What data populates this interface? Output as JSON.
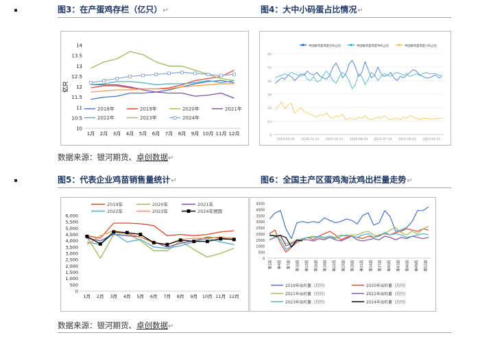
{
  "titles": {
    "fig3": "图3：在产蛋鸡存栏（亿只）",
    "fig4": "图4：大中小码蛋占比情况",
    "fig5": "图5：代表企业鸡苗销售量统计",
    "fig6": "图6：全国主产区蛋鸡淘汰鸡出栏量走势"
  },
  "return_mark": "↵",
  "source": {
    "prefix": "数据来源：银河期货、",
    "link": "卓创数据"
  },
  "colors": {
    "c2018": "#4472c4",
    "c2019": "#e0442b",
    "c2020": "#9aba59",
    "c2021": "#7f4fa0",
    "c2022": "#4bacc6",
    "c2023": "#f7963c",
    "c2024": "#8da8d8",
    "blue": "#2f6fcf",
    "teal": "#3bb0c0",
    "gold": "#f3c24f",
    "black": "#000000"
  },
  "chart_data": [
    {
      "id": "fig3",
      "type": "line",
      "title": "在产蛋鸡存栏（亿只）",
      "ylabel": "亿只",
      "ylim": [
        10,
        14
      ],
      "yticks": [
        "10",
        "10.5",
        "11",
        "11.5",
        "12",
        "12.5",
        "13",
        "13.5",
        "14"
      ],
      "categories": [
        "1月",
        "2月",
        "3月",
        "4月",
        "5月",
        "6月",
        "7月",
        "8月",
        "9月",
        "10月",
        "11月",
        "12月"
      ],
      "series": [
        {
          "name": "2018年",
          "color": "c2018",
          "values": [
            11.4,
            11.5,
            11.55,
            11.7,
            11.7,
            11.75,
            11.85,
            12.0,
            12.15,
            12.25,
            12.3,
            12.2
          ]
        },
        {
          "name": "2019年",
          "color": "c2019",
          "values": [
            11.95,
            12.05,
            12.05,
            11.95,
            11.9,
            11.9,
            11.95,
            12.1,
            12.3,
            12.4,
            12.5,
            12.8
          ]
        },
        {
          "name": "2020年",
          "color": "c2020",
          "values": [
            12.9,
            13.2,
            13.35,
            13.7,
            13.55,
            13.2,
            13.0,
            13.0,
            12.8,
            12.6,
            12.4,
            12.3
          ]
        },
        {
          "name": "2021年",
          "color": "c2021",
          "values": [
            12.1,
            12.1,
            12.1,
            12.0,
            11.85,
            11.75,
            11.7,
            11.7,
            11.55,
            11.6,
            11.7,
            11.45
          ]
        },
        {
          "name": "2022年",
          "color": "c2022",
          "values": [
            12.1,
            12.15,
            12.25,
            12.25,
            12.2,
            12.1,
            12.15,
            12.15,
            12.2,
            12.3,
            12.2,
            12.3
          ]
        },
        {
          "name": "2023年",
          "color": "c2023",
          "values": [
            11.75,
            11.8,
            11.85,
            11.85,
            11.9,
            11.9,
            11.9,
            12.0,
            12.05,
            12.1,
            12.15,
            12.15
          ]
        },
        {
          "name": "2024年",
          "color": "c2024",
          "values": [
            12.2,
            12.3,
            12.4,
            12.5,
            12.55,
            12.6,
            12.65,
            12.7,
            12.65,
            12.6,
            12.55,
            12.6
          ],
          "marker": "square"
        }
      ]
    },
    {
      "id": "fig4",
      "type": "line",
      "title": "大中小码蛋占比情况",
      "ylim": [
        0,
        60
      ],
      "yticks": [
        "0",
        "10",
        "20",
        "30",
        "40",
        "50",
        "60"
      ],
      "xticks": [
        "2018-05-05",
        "2018-11-23",
        "2019-10-11",
        "2020-08-28",
        "2021-07-16",
        "2022-06-03",
        "2023-04-21"
      ],
      "legend": [
        "中国鲜鸡蛋周度大码占比",
        "中国鲜鸡蛋周度中码占比",
        "中国鲜鸡蛋周度小码占比"
      ],
      "series": [
        {
          "name": "中国鲜鸡蛋周度大码占比",
          "color": "blue",
          "values": [
            38,
            40,
            42,
            41,
            44,
            43,
            40,
            42,
            45,
            44,
            47,
            45,
            44,
            46,
            43,
            42,
            41,
            44,
            50,
            53,
            48,
            42,
            45,
            52,
            55,
            50,
            43,
            46,
            54,
            48,
            42,
            44,
            50,
            45,
            43,
            44,
            46,
            42,
            40,
            43,
            42,
            44,
            46,
            48,
            47,
            44,
            43,
            42,
            42,
            43,
            44,
            42,
            43
          ]
        },
        {
          "name": "中国鲜鸡蛋周度中码占比",
          "color": "teal",
          "values": [
            42,
            43,
            44,
            45,
            44,
            46,
            45,
            44,
            43,
            45,
            41,
            40,
            43,
            39,
            40,
            44,
            47,
            44,
            40,
            38,
            43,
            46,
            44,
            40,
            34,
            37,
            45,
            43,
            37,
            41,
            46,
            44,
            40,
            43,
            45,
            44,
            43,
            45,
            46,
            45,
            44,
            45,
            43,
            44,
            45,
            44,
            45,
            46,
            45,
            45,
            45,
            44,
            44
          ]
        },
        {
          "name": "中国鲜鸡蛋周度小码占比",
          "color": "gold",
          "values": [
            18,
            21,
            24,
            19,
            22,
            23,
            16,
            18,
            20,
            17,
            16,
            15,
            14,
            13,
            15,
            14,
            16,
            13,
            12,
            14,
            13,
            15,
            11,
            12,
            12,
            11,
            13,
            12,
            14,
            12,
            11,
            12,
            13,
            12,
            14,
            12,
            11,
            12,
            12,
            11,
            13,
            12,
            14,
            13,
            12,
            11,
            12,
            12,
            12,
            11,
            12,
            12,
            12
          ]
        }
      ]
    },
    {
      "id": "fig5",
      "type": "line",
      "title": "代表企业鸡苗销售量统计",
      "ylim": [
        0,
        6000
      ],
      "yticks": [
        "0",
        "500",
        "1,000",
        "1,500",
        "2,000",
        "2,500",
        "3,000",
        "3,500",
        "4,000",
        "4,500",
        "5,000",
        "5,500",
        "6,000"
      ],
      "categories": [
        "1月",
        "2月",
        "3月",
        "4月",
        "5月",
        "6月",
        "7月",
        "8月",
        "9月",
        "10月",
        "11月",
        "12月"
      ],
      "legend": [
        "2019年",
        "2020年",
        "2021年",
        "2022年",
        "2023年",
        "2024年预期"
      ],
      "series": [
        {
          "name": "2019年",
          "color": "c2019",
          "values": [
            4400,
            4200,
            5400,
            5400,
            5350,
            5200,
            4400,
            4500,
            4400,
            4500,
            4700,
            4800
          ]
        },
        {
          "name": "2020年",
          "color": "c2020",
          "values": [
            4300,
            2600,
            4500,
            4600,
            4000,
            3200,
            3200,
            4000,
            3300,
            2700,
            3000,
            3400
          ]
        },
        {
          "name": "2021年",
          "color": "c2021",
          "values": [
            4200,
            4000,
            4500,
            4400,
            4300,
            3900,
            3500,
            3800,
            4000,
            4300,
            4200,
            4100
          ]
        },
        {
          "name": "2022年",
          "color": "c2022",
          "values": [
            3900,
            3700,
            4600,
            3900,
            4100,
            3500,
            3400,
            3600,
            3900,
            4200,
            3900,
            3700
          ]
        },
        {
          "name": "2023年",
          "color": "c2023",
          "values": [
            3700,
            4400,
            4800,
            4600,
            4300,
            3800,
            3700,
            4100,
            4200,
            4200,
            4300,
            4200
          ]
        },
        {
          "name": "2024年预期",
          "color": "black",
          "values": [
            4350,
            3750,
            4700,
            4650,
            4500,
            3850,
            3700,
            4050,
            3950,
            3950,
            4150,
            4100
          ],
          "marker": "square"
        }
      ]
    },
    {
      "id": "fig6",
      "type": "line",
      "title": "全国主产区蛋鸡淘汰鸡出栏量走势",
      "ylim": [
        0,
        4500
      ],
      "yticks": [
        "0",
        "500",
        "1000",
        "1500",
        "2000",
        "2500",
        "3000",
        "3500",
        "4000",
        "4500"
      ],
      "xticks": [
        "第1周",
        "第4周",
        "第7周",
        "第10周",
        "第13周",
        "第16周",
        "第19周",
        "第22周",
        "第25周",
        "第28周",
        "第31周",
        "第34周",
        "第37周",
        "第40周",
        "第43周",
        "第46周",
        "第49周",
        "第52周"
      ],
      "legend": [
        "2019年出栏量（万只）",
        "2020年出栏量（万只）",
        "2021年出栏量（万只）",
        "2022年出栏量（万只）",
        "2023年出栏量（万只）",
        "2024年出栏量（万只）"
      ],
      "series": [
        {
          "name": "2019年出栏量（万只）",
          "color": "c2018",
          "values": [
            3200,
            3700,
            3900,
            2400,
            1600,
            2900,
            3000,
            2900,
            3000,
            2900,
            3300,
            3100,
            2900,
            3000,
            3200,
            3100,
            2800,
            3500,
            3700,
            2700,
            2900,
            3900,
            3400,
            2200,
            2300,
            2500,
            3000,
            3900,
            3900,
            4200
          ]
        },
        {
          "name": "2020年出栏量（万只）",
          "color": "c2019",
          "values": [
            2000,
            2300,
            1200,
            500,
            900,
            1300,
            1500,
            1700,
            1500,
            1800,
            2000,
            2200,
            1900,
            1500,
            1700,
            1800,
            1700,
            1600,
            1800,
            1700,
            1900,
            2000,
            1900,
            2100,
            2200,
            2400,
            2300,
            2200,
            2400,
            2300
          ]
        },
        {
          "name": "2021年出栏量（万只）",
          "color": "c2020",
          "values": [
            1800,
            1900,
            1700,
            1200,
            1300,
            1500,
            1500,
            1700,
            1800,
            1700,
            1600,
            1800,
            1700,
            1900,
            1800,
            1900,
            1900,
            2100,
            2200,
            1900,
            1800,
            2000,
            2300,
            2500,
            2100,
            1900,
            2200,
            2000,
            2400,
            2600
          ]
        },
        {
          "name": "2022年出栏量（万只）",
          "color": "c2021",
          "values": [
            1500,
            1700,
            1900,
            1000,
            1200,
            1400,
            1500,
            1500,
            1400,
            1600,
            1500,
            1700,
            1500,
            1400,
            1600,
            1800,
            1500,
            1400,
            1500,
            1600,
            1500,
            1800,
            1700,
            1500,
            1700,
            1600,
            1800,
            1700,
            1600,
            1700
          ]
        },
        {
          "name": "2023年出栏量（万只）",
          "color": "c2022",
          "values": [
            1900,
            1800,
            1500,
            700,
            1000,
            1400,
            1600,
            1700,
            1700,
            1800,
            1700,
            1800,
            1600,
            1800,
            1900,
            1800,
            1700,
            1900,
            2000,
            1700,
            1800,
            2100,
            1900,
            2000,
            1900,
            1700,
            1800,
            1900,
            2000,
            1900
          ]
        },
        {
          "name": "2024年出栏量（万只）",
          "color": "black",
          "values": [
            1900,
            1800,
            1850,
            1700,
            900,
            1500,
            1400
          ]
        }
      ]
    }
  ]
}
